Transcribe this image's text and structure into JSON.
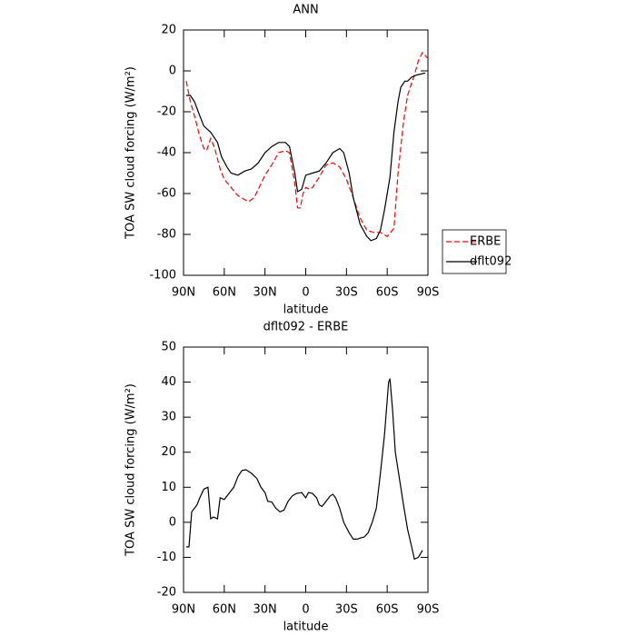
{
  "chart_data": [
    {
      "type": "line",
      "title": "ANN",
      "xlabel": "latitude",
      "ylabel": "TOA SW cloud forcing (W/m²)",
      "xlim": [
        90,
        -90
      ],
      "xticks": [
        {
          "value": 90,
          "label": "90N"
        },
        {
          "value": 60,
          "label": "60N"
        },
        {
          "value": 30,
          "label": "30N"
        },
        0,
        {
          "value": -30,
          "label": "30S"
        },
        {
          "value": -60,
          "label": "60S"
        },
        {
          "value": -90,
          "label": "90S"
        }
      ],
      "ylim": [
        -100,
        20
      ],
      "yticks": [
        -100,
        -80,
        -60,
        -40,
        -20,
        0,
        20
      ],
      "legend": "right",
      "series": [
        {
          "name": "ERBE",
          "color": "#ff0000",
          "linestyle": "dashed",
          "x": [
            88,
            85,
            82,
            78,
            75,
            73,
            70,
            67,
            63,
            60,
            55,
            50,
            45,
            42,
            38,
            35,
            30,
            25,
            20,
            15,
            12,
            8,
            6,
            4,
            2,
            0,
            -3,
            -5,
            -10,
            -15,
            -20,
            -25,
            -30,
            -35,
            -40,
            -45,
            -50,
            -55,
            -60,
            -65,
            -68,
            -72,
            -75,
            -80,
            -83,
            -86,
            -90
          ],
          "values": [
            -5,
            -15,
            -22,
            -32,
            -38,
            -39,
            -33,
            -38,
            -48,
            -53,
            -57,
            -61,
            -63,
            -64,
            -62,
            -58,
            -51,
            -46,
            -40,
            -39,
            -40,
            -55,
            -67,
            -67,
            -60,
            -57,
            -58,
            -57,
            -52,
            -46,
            -45,
            -47,
            -53,
            -62,
            -72,
            -78,
            -79,
            -79,
            -81,
            -77,
            -50,
            -25,
            -12,
            -2,
            5,
            9,
            6
          ]
        },
        {
          "name": "dflt092",
          "color": "#000000",
          "linestyle": "solid",
          "x": [
            88,
            85,
            82,
            78,
            75,
            70,
            65,
            62,
            58,
            55,
            50,
            45,
            40,
            35,
            30,
            25,
            20,
            15,
            12,
            8,
            6,
            3,
            0,
            -5,
            -10,
            -15,
            -20,
            -25,
            -28,
            -32,
            -35,
            -40,
            -45,
            -48,
            -52,
            -55,
            -58,
            -62,
            -65,
            -68,
            -70,
            -73,
            -75,
            -78,
            -82,
            -88
          ],
          "values": [
            -12,
            -12,
            -15,
            -22,
            -27,
            -30,
            -35,
            -42,
            -47,
            -50,
            -51,
            -49,
            -48,
            -45,
            -40,
            -37,
            -35,
            -35,
            -37,
            -50,
            -59,
            -58,
            -51,
            -50,
            -49,
            -45,
            -40,
            -38,
            -40,
            -50,
            -62,
            -75,
            -81,
            -83,
            -82,
            -78,
            -68,
            -52,
            -30,
            -15,
            -8,
            -5,
            -5,
            -3,
            -2,
            -1
          ]
        }
      ]
    },
    {
      "type": "line",
      "title": "dflt092 - ERBE",
      "xlabel": "latitude",
      "ylabel": "TOA SW cloud forcing (W/m²)",
      "xlim": [
        90,
        -90
      ],
      "xticks": [
        {
          "value": 90,
          "label": "90N"
        },
        {
          "value": 60,
          "label": "60N"
        },
        {
          "value": 30,
          "label": "30N"
        },
        0,
        {
          "value": -30,
          "label": "30S"
        },
        {
          "value": -60,
          "label": "60S"
        },
        {
          "value": -90,
          "label": "90S"
        }
      ],
      "ylim": [
        -20,
        50
      ],
      "yticks": [
        -20,
        -10,
        0,
        10,
        20,
        30,
        40,
        50
      ],
      "series": [
        {
          "color": "#000000",
          "linestyle": "solid",
          "x": [
            88,
            86,
            84,
            80,
            78,
            75,
            72,
            70,
            68,
            65,
            63,
            60,
            57,
            53,
            50,
            47,
            44,
            40,
            36,
            33,
            30,
            28,
            25,
            22,
            19,
            16,
            13,
            10,
            7,
            3,
            0,
            -2,
            -5,
            -8,
            -10,
            -12,
            -15,
            -18,
            -20,
            -22,
            -25,
            -28,
            -32,
            -35,
            -38,
            -40,
            -43,
            -46,
            -49,
            -52,
            -55,
            -58,
            -61,
            -62,
            -64,
            -66,
            -68,
            -72,
            -75,
            -78,
            -80,
            -83,
            -86
          ],
          "values": [
            -7,
            -7,
            3,
            5,
            7,
            9.5,
            10,
            1,
            1.5,
            1,
            7,
            6.5,
            8,
            10,
            13,
            14.8,
            15,
            14,
            12.5,
            10,
            8.5,
            6,
            5.8,
            4,
            3,
            3.5,
            6,
            7.5,
            8.2,
            8.5,
            7,
            8.5,
            8.2,
            7,
            5,
            4.5,
            6,
            7.5,
            8,
            7,
            4,
            0,
            -3,
            -4.8,
            -4.8,
            -4.5,
            -4.2,
            -3,
            0,
            4,
            14,
            25,
            40,
            41,
            32,
            20,
            15,
            5,
            -2,
            -7,
            -10.5,
            -10,
            -8
          ]
        }
      ]
    }
  ]
}
